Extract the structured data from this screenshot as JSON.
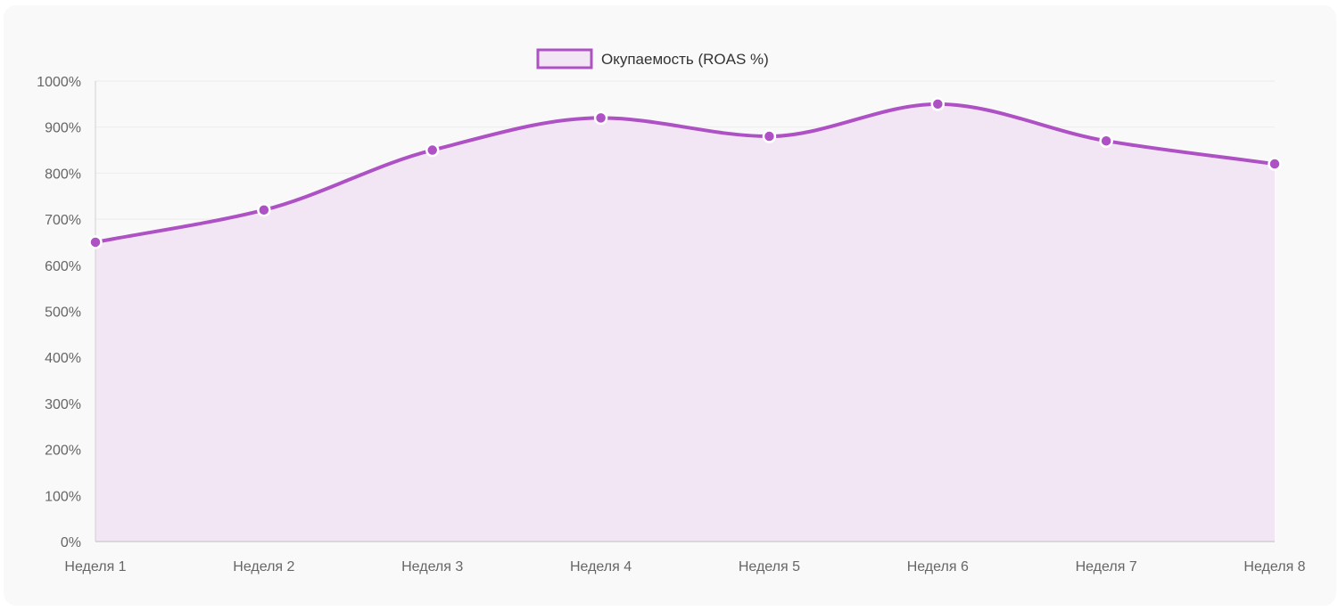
{
  "colors": {
    "accent": "#ad51c4",
    "fill": "#f2e6f5",
    "grid": "#ececec",
    "axis": "#cfcfcf",
    "background": "#f9f9f9"
  },
  "chart_data": {
    "type": "line",
    "categories": [
      "Неделя 1",
      "Неделя 2",
      "Неделя 3",
      "Неделя 4",
      "Неделя 5",
      "Неделя 6",
      "Неделя 7",
      "Неделя 8"
    ],
    "series": [
      {
        "name": "Окупаемость (ROAS %)",
        "values": [
          650,
          720,
          850,
          920,
          880,
          950,
          870,
          820
        ]
      }
    ],
    "ylim": [
      0,
      1000
    ],
    "yticks": [
      0,
      100,
      200,
      300,
      400,
      500,
      600,
      700,
      800,
      900,
      1000
    ],
    "ytick_labels": [
      "0%",
      "100%",
      "200%",
      "300%",
      "400%",
      "500%",
      "600%",
      "700%",
      "800%",
      "900%",
      "1000%"
    ],
    "filled": true,
    "smooth": true,
    "grid": true,
    "legend_position": "top-center"
  }
}
